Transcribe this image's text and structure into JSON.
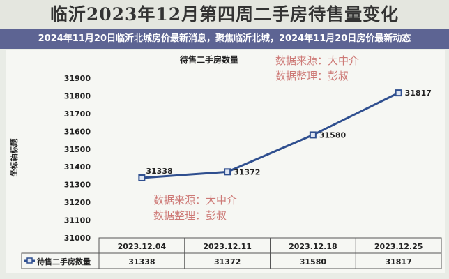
{
  "page_title": "临沂2023年12月第四周二手房待售量变化",
  "banner": "2024年11月20日临沂北城房价最新消息，聚焦临沂北城，2024年11月20日房价最新动态",
  "watermark": {
    "line1": "数据来源：大中介",
    "line2": "数据整理：彭叔"
  },
  "colors": {
    "line": "#2f4f8f",
    "marker": "#2f4f8f",
    "watermark": "#c0504d",
    "banner": "#50588c"
  },
  "chart_data": {
    "type": "line",
    "title": "待售二手房数量",
    "ylabel": "坐标轴标题",
    "xlabel": "",
    "categories": [
      "2023.12.04",
      "2023.12.11",
      "2023.12.18",
      "2023.12.25"
    ],
    "series": [
      {
        "name": "待售二手房数量",
        "values": [
          31338,
          31372,
          31580,
          31817
        ]
      }
    ],
    "ylim": [
      31000,
      31900
    ],
    "yticks": [
      "31000",
      "31100",
      "31200",
      "31300",
      "31400",
      "31500",
      "31600",
      "31700",
      "31800",
      "31900"
    ],
    "legend": "data-table-left",
    "grid": false
  }
}
